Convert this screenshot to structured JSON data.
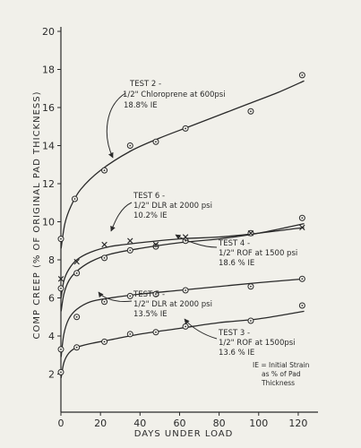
{
  "chart_data": {
    "type": "line",
    "xlabel": "DAYS UNDER LOAD",
    "ylabel": "COMP CREEP (% OF ORIGINAL PAD THICKNESS)",
    "xlim": [
      0,
      130
    ],
    "ylim": [
      0,
      20
    ],
    "xticks": [
      "0",
      "20",
      "40",
      "60",
      "80",
      "100",
      "120"
    ],
    "yticks": [
      "2",
      "4",
      "6",
      "8",
      "10",
      "12",
      "14",
      "16",
      "18",
      "20"
    ],
    "grid": false,
    "ink_color": "#2a2a2a",
    "series": [
      {
        "name": "TEST 2",
        "annotation_lines": [
          "TEST 2 -",
          "1/2\" Chloroprene at 600psi",
          "18.8% IE"
        ],
        "marker": "circle-dot",
        "points": [
          [
            0,
            9.1
          ],
          [
            7,
            11.2
          ],
          [
            22,
            12.7
          ],
          [
            35,
            14.0
          ],
          [
            48,
            14.2
          ],
          [
            63,
            14.9
          ],
          [
            96,
            15.8
          ],
          [
            122,
            17.7
          ]
        ],
        "curve": [
          [
            0.1,
            8.6
          ],
          [
            2,
            9.9
          ],
          [
            5,
            10.8
          ],
          [
            10,
            11.7
          ],
          [
            20,
            12.7
          ],
          [
            35,
            13.7
          ],
          [
            50,
            14.4
          ],
          [
            65,
            15.0
          ],
          [
            80,
            15.6
          ],
          [
            95,
            16.2
          ],
          [
            110,
            16.8
          ],
          [
            123,
            17.4
          ]
        ]
      },
      {
        "name": "TEST 6",
        "annotation_lines": [
          "TEST 6 -",
          "1/2\" DLR at 2000 psi",
          "10.2% IE"
        ],
        "marker": "circle-dot",
        "points": [
          [
            0,
            6.5
          ],
          [
            8,
            7.3
          ],
          [
            22,
            8.1
          ],
          [
            35,
            8.5
          ],
          [
            48,
            8.7
          ],
          [
            63,
            9.0
          ],
          [
            96,
            9.4
          ],
          [
            122,
            10.2
          ]
        ],
        "curve": [
          [
            0.1,
            5.3
          ],
          [
            1.5,
            6.2
          ],
          [
            4,
            6.9
          ],
          [
            8,
            7.4
          ],
          [
            15,
            7.9
          ],
          [
            25,
            8.3
          ],
          [
            40,
            8.6
          ],
          [
            60,
            8.9
          ],
          [
            80,
            9.1
          ],
          [
            100,
            9.4
          ],
          [
            123,
            9.9
          ]
        ]
      },
      {
        "name": "TEST 4",
        "annotation_lines": [
          "TEST 4 -",
          "1/2\" ROF at 1500 psi",
          "18.6 % IE"
        ],
        "marker": "x",
        "points": [
          [
            0,
            7.0
          ],
          [
            8,
            7.9
          ],
          [
            22,
            8.8
          ],
          [
            35,
            9.0
          ],
          [
            48,
            8.8
          ],
          [
            63,
            9.2
          ],
          [
            96,
            9.4
          ],
          [
            122,
            9.7
          ]
        ],
        "curve": [
          [
            0.1,
            6.0
          ],
          [
            1.5,
            6.9
          ],
          [
            4,
            7.5
          ],
          [
            8,
            8.0
          ],
          [
            15,
            8.4
          ],
          [
            25,
            8.7
          ],
          [
            40,
            8.9
          ],
          [
            60,
            9.1
          ],
          [
            80,
            9.2
          ],
          [
            100,
            9.4
          ],
          [
            123,
            9.7
          ]
        ]
      },
      {
        "name": "TEST 5",
        "annotation_lines": [
          "TEST 5 -",
          "1/2\" DLR at 2000 psi",
          "13.5% IE"
        ],
        "marker": "circle-dot",
        "points": [
          [
            0,
            3.3
          ],
          [
            8,
            5.0
          ],
          [
            22,
            5.8
          ],
          [
            35,
            6.1
          ],
          [
            48,
            6.2
          ],
          [
            63,
            6.4
          ],
          [
            96,
            6.6
          ],
          [
            122,
            7.0
          ]
        ],
        "curve": [
          [
            0.1,
            2.9
          ],
          [
            1.5,
            4.1
          ],
          [
            4,
            4.9
          ],
          [
            8,
            5.4
          ],
          [
            15,
            5.8
          ],
          [
            25,
            6.0
          ],
          [
            40,
            6.2
          ],
          [
            60,
            6.4
          ],
          [
            80,
            6.6
          ],
          [
            100,
            6.8
          ],
          [
            123,
            7.0
          ]
        ]
      },
      {
        "name": "TEST 3",
        "annotation_lines": [
          "TEST 3 -",
          "1/2\" ROF at 1500psi",
          "13.6 % IE"
        ],
        "marker": "circle-dot",
        "points": [
          [
            0,
            2.1
          ],
          [
            8,
            3.4
          ],
          [
            22,
            3.7
          ],
          [
            35,
            4.1
          ],
          [
            48,
            4.2
          ],
          [
            63,
            4.5
          ],
          [
            96,
            4.8
          ],
          [
            122,
            5.6
          ]
        ],
        "curve": [
          [
            0.1,
            1.8
          ],
          [
            1.5,
            2.6
          ],
          [
            4,
            3.1
          ],
          [
            8,
            3.4
          ],
          [
            15,
            3.6
          ],
          [
            25,
            3.8
          ],
          [
            40,
            4.1
          ],
          [
            60,
            4.4
          ],
          [
            80,
            4.7
          ],
          [
            100,
            4.9
          ],
          [
            123,
            5.3
          ]
        ]
      }
    ],
    "legend_note_lines": [
      "IE = Initial Strain",
      "as % of Pad",
      "Thickness"
    ]
  }
}
